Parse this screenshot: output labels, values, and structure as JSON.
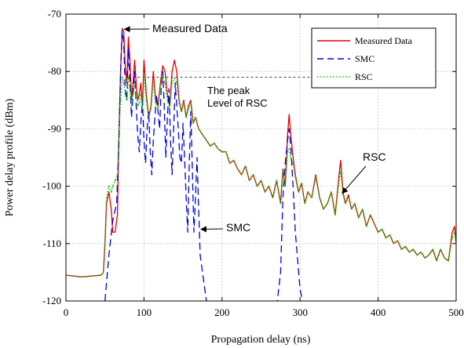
{
  "chart_data": {
    "type": "line",
    "xlabel": "Propagation delay (ns)",
    "ylabel": "Power delay profile (dBm)",
    "xlim": [
      0,
      500
    ],
    "ylim": [
      -120,
      -70
    ],
    "x_ticks": [
      "0",
      "100",
      "200",
      "300",
      "400",
      "500"
    ],
    "y_ticks": [
      "-70",
      "-80",
      "-90",
      "-100",
      "-110",
      "-120"
    ],
    "grid": true,
    "legend_position": "top-right",
    "series": [
      {
        "name": "Measured Data",
        "color": "#e00000",
        "style": "solid",
        "x": [
          0,
          20,
          45,
          48,
          50,
          52,
          55,
          58,
          60,
          63,
          66,
          68,
          70,
          72,
          74,
          76,
          78,
          80,
          82,
          84,
          86,
          88,
          90,
          92,
          94,
          96,
          98,
          100,
          103,
          106,
          109,
          112,
          115,
          118,
          121,
          124,
          127,
          130,
          133,
          136,
          139,
          142,
          145,
          148,
          151,
          154,
          157,
          160,
          163,
          166,
          170,
          175,
          180,
          185,
          190,
          195,
          200,
          205,
          210,
          215,
          220,
          225,
          230,
          235,
          240,
          245,
          250,
          255,
          260,
          265,
          270,
          275,
          278,
          281,
          284,
          286,
          288,
          291,
          294,
          298,
          302,
          306,
          310,
          315,
          320,
          325,
          330,
          335,
          340,
          345,
          350,
          352,
          355,
          358,
          362,
          366,
          370,
          375,
          380,
          385,
          390,
          395,
          400,
          405,
          410,
          415,
          420,
          425,
          430,
          435,
          440,
          445,
          450,
          455,
          460,
          465,
          470,
          475,
          480,
          485,
          490,
          495,
          498,
          500
        ],
        "y": [
          -115.5,
          -115.8,
          -115.5,
          -115,
          -110,
          -103,
          -101,
          -104,
          -108,
          -108,
          -105,
          -90,
          -80,
          -72.5,
          -73,
          -79,
          -82,
          -74,
          -78,
          -85,
          -82,
          -78,
          -82,
          -85,
          -84,
          -82,
          -86,
          -78,
          -84,
          -88,
          -86,
          -80,
          -85,
          -86,
          -82,
          -79,
          -80,
          -84,
          -86,
          -80,
          -78,
          -80,
          -85,
          -87,
          -85,
          -88,
          -86,
          -85,
          -89,
          -88,
          -90,
          -91,
          -92,
          -93,
          -92.5,
          -93.5,
          -94,
          -94,
          -96,
          -95.5,
          -97,
          -98,
          -96.5,
          -99,
          -98,
          -100,
          -99,
          -101,
          -100,
          -102,
          -99,
          -103,
          -97,
          -100,
          -91,
          -87.5,
          -91,
          -95,
          -98,
          -101,
          -99.5,
          -103,
          -101,
          -102,
          -98,
          -102,
          -104,
          -103,
          -101,
          -105,
          -98,
          -95.5,
          -101,
          -103,
          -101.5,
          -104,
          -103,
          -105.5,
          -104,
          -107,
          -105,
          -106.5,
          -108,
          -107.5,
          -109,
          -108.5,
          -110,
          -109.5,
          -111,
          -110.5,
          -111.5,
          -111,
          -112,
          -111.5,
          -112.5,
          -112,
          -111,
          -113,
          -111,
          -112.5,
          -113,
          -108,
          -107,
          -110
        ]
      },
      {
        "name": "SMC",
        "color": "#0000dd",
        "style": "dashed",
        "x": [
          50,
          55,
          60,
          65,
          68,
          70,
          72,
          74,
          76,
          78,
          80,
          82,
          84,
          86,
          88,
          90,
          92,
          94,
          96,
          98,
          100,
          102,
          104,
          106,
          108,
          110,
          112,
          114,
          116,
          118,
          120,
          122,
          124,
          126,
          128,
          130,
          132,
          134,
          136,
          138,
          140,
          142,
          144,
          146,
          148,
          150,
          152,
          154,
          156,
          158,
          160,
          162,
          164,
          166,
          168,
          170,
          172,
          175,
          180,
          185,
          270,
          275,
          278,
          281,
          284,
          286,
          288,
          291,
          294,
          297,
          300,
          305
        ],
        "y": [
          -120,
          -112,
          -106,
          -103,
          -92,
          -80,
          -73,
          -75,
          -83,
          -85,
          -76,
          -82,
          -88,
          -84,
          -80,
          -86,
          -91,
          -94,
          -89,
          -85,
          -92,
          -96,
          -90,
          -87,
          -94,
          -98,
          -92,
          -88,
          -84,
          -87,
          -90,
          -83,
          -80,
          -86,
          -95,
          -88,
          -83,
          -92,
          -98,
          -90,
          -82,
          -86,
          -90,
          -95,
          -96,
          -89,
          -95,
          -102,
          -108,
          -96,
          -87,
          -97,
          -108,
          -102,
          -95,
          -104,
          -112,
          -115,
          -120,
          -121,
          -121,
          -115,
          -102,
          -96,
          -92,
          -90,
          -93,
          -100,
          -108,
          -113,
          -118,
          -121
        ]
      },
      {
        "name": "RSC",
        "color": "#00cc00",
        "style": "dotted",
        "x": [
          0,
          20,
          45,
          48,
          50,
          52,
          55,
          58,
          60,
          63,
          66,
          68,
          70,
          72,
          74,
          76,
          78,
          80,
          82,
          84,
          86,
          88,
          90,
          92,
          94,
          96,
          98,
          100,
          103,
          106,
          109,
          112,
          115,
          118,
          121,
          124,
          127,
          130,
          133,
          136,
          139,
          142,
          145,
          148,
          151,
          154,
          157,
          160,
          163,
          166,
          170,
          175,
          180,
          185,
          190,
          195,
          200,
          205,
          210,
          215,
          220,
          225,
          230,
          235,
          240,
          245,
          250,
          255,
          260,
          265,
          270,
          275,
          278,
          281,
          284,
          286,
          288,
          291,
          294,
          298,
          302,
          306,
          310,
          315,
          320,
          325,
          330,
          335,
          340,
          345,
          350,
          352,
          355,
          358,
          362,
          366,
          370,
          375,
          380,
          385,
          390,
          395,
          400,
          405,
          410,
          415,
          420,
          425,
          430,
          435,
          440,
          445,
          450,
          455,
          460,
          465,
          470,
          475,
          480,
          485,
          490,
          495,
          498,
          500
        ],
        "y": [
          -115.5,
          -115.8,
          -115.5,
          -115,
          -110,
          -102,
          -100,
          -101,
          -100,
          -99,
          -98,
          -90,
          -85,
          -81,
          -82,
          -84,
          -85,
          -81,
          -83,
          -86,
          -84,
          -82,
          -84,
          -86,
          -85.5,
          -84,
          -86.5,
          -81,
          -85,
          -88,
          -86.5,
          -81.5,
          -85.5,
          -86.5,
          -83,
          -81,
          -82,
          -85,
          -86.5,
          -82,
          -81.2,
          -82,
          -85.5,
          -87,
          -85.5,
          -88,
          -86.5,
          -85.5,
          -89,
          -88,
          -90,
          -91,
          -92,
          -93,
          -92.5,
          -93.5,
          -94,
          -94,
          -96,
          -95.5,
          -97,
          -98,
          -96.5,
          -99,
          -98,
          -100,
          -99,
          -101,
          -100,
          -102,
          -99,
          -103,
          -97.5,
          -100,
          -94,
          -93.5,
          -95,
          -96,
          -98.5,
          -101,
          -99.5,
          -103,
          -101,
          -102,
          -98.5,
          -102,
          -104,
          -103,
          -101,
          -105,
          -99,
          -97.5,
          -101.5,
          -103,
          -102,
          -104,
          -103,
          -105.5,
          -104,
          -107,
          -105,
          -106.5,
          -108,
          -107.5,
          -109,
          -108.5,
          -110,
          -109.5,
          -111,
          -110.5,
          -111.5,
          -111,
          -112,
          -111.5,
          -112.5,
          -112,
          -111,
          -113,
          -111,
          -112.5,
          -113,
          -109,
          -108,
          -110
        ]
      }
    ],
    "reference_line": {
      "y": -81,
      "x_start": 80,
      "x_end": 500,
      "style": "dashed",
      "color": "#000000"
    },
    "annotations": [
      {
        "text": "Measured Data",
        "target_x": 72,
        "target_y": -72.5
      },
      {
        "text": "The peak",
        "line": 1
      },
      {
        "text": "Level of RSC",
        "line": 2
      },
      {
        "text": "SMC",
        "target_x": 171,
        "target_y": -107.5
      },
      {
        "text": "RSC",
        "target_x": 351,
        "target_y": -101.5
      }
    ]
  }
}
